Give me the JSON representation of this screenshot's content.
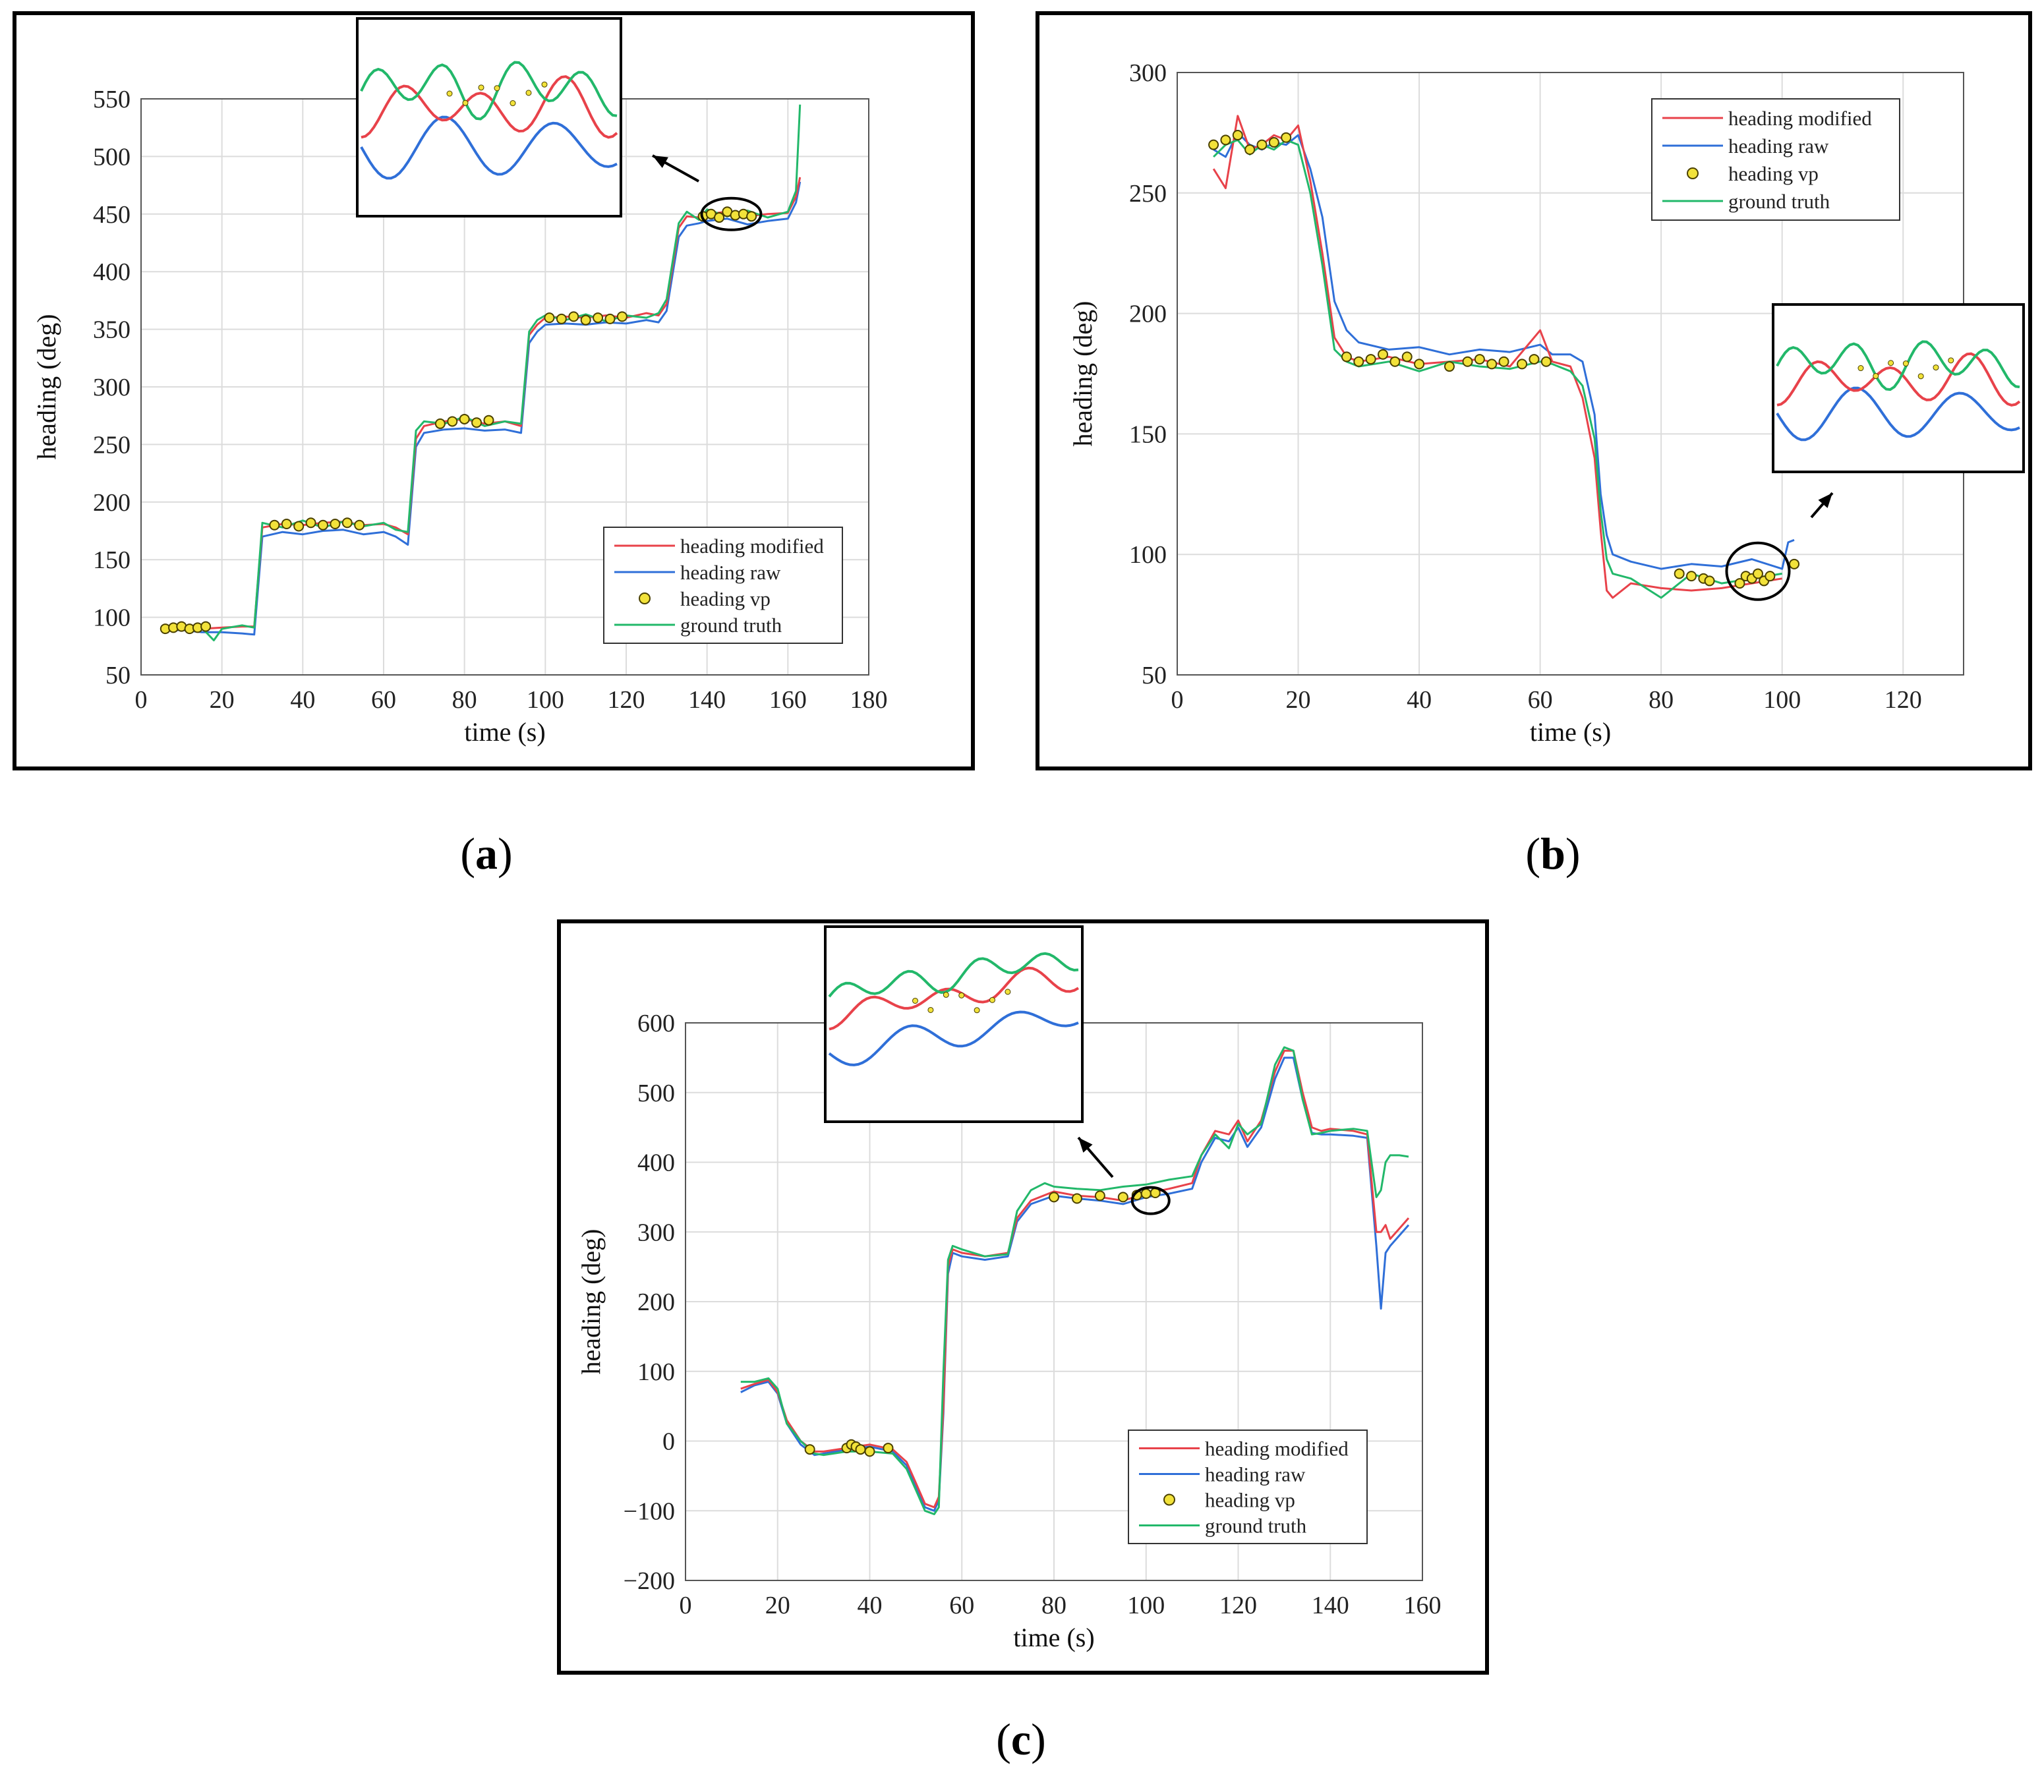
{
  "figure": {
    "panel_labels": {
      "a": "a",
      "b": "b",
      "c": "c"
    }
  },
  "colors": {
    "modified": "#e8424a",
    "raw": "#2f6fd8",
    "vp_fill": "#f2e23a",
    "vp_edge": "#4a4000",
    "truth": "#22b86a",
    "grid": "#dcdcdc",
    "axis": "#555555"
  },
  "legend_labels": [
    "heading modified",
    "heading raw",
    "heading vp",
    "ground truth"
  ],
  "chart_data": [
    {
      "id": "a",
      "type": "line",
      "xlabel": "time (s)",
      "ylabel": "heading (deg)",
      "xlim": [
        0,
        180
      ],
      "ylim": [
        50,
        550
      ],
      "xticks": [
        0,
        20,
        40,
        60,
        80,
        100,
        120,
        140,
        160,
        180
      ],
      "yticks": [
        50,
        100,
        150,
        200,
        250,
        300,
        350,
        400,
        450,
        500,
        550
      ],
      "grid": true,
      "legend": "bottom-right",
      "series": [
        {
          "name": "heading modified",
          "key": "modified",
          "x": [
            5,
            10,
            15,
            20,
            25,
            28,
            30,
            35,
            40,
            45,
            50,
            55,
            60,
            63,
            66,
            68,
            70,
            75,
            80,
            85,
            90,
            94,
            96,
            98,
            100,
            105,
            110,
            115,
            120,
            125,
            128,
            130,
            133,
            135,
            138,
            140,
            145,
            150,
            155,
            160,
            162,
            163
          ],
          "y": [
            91,
            92,
            90,
            91,
            92,
            92,
            178,
            181,
            180,
            182,
            183,
            180,
            181,
            178,
            172,
            255,
            266,
            270,
            272,
            268,
            270,
            266,
            345,
            354,
            360,
            361,
            360,
            362,
            360,
            364,
            362,
            372,
            438,
            448,
            447,
            450,
            452,
            448,
            450,
            451,
            465,
            482
          ]
        },
        {
          "name": "heading raw",
          "key": "raw",
          "x": [
            5,
            10,
            15,
            20,
            25,
            28,
            30,
            35,
            40,
            45,
            50,
            55,
            60,
            63,
            66,
            68,
            70,
            75,
            80,
            85,
            90,
            94,
            96,
            98,
            100,
            105,
            110,
            115,
            120,
            125,
            128,
            130,
            133,
            135,
            138,
            140,
            145,
            150,
            155,
            160,
            162,
            163
          ],
          "y": [
            88,
            89,
            87,
            87,
            86,
            85,
            170,
            174,
            172,
            175,
            176,
            172,
            174,
            170,
            163,
            248,
            260,
            263,
            264,
            262,
            263,
            260,
            338,
            348,
            354,
            355,
            354,
            356,
            355,
            358,
            356,
            366,
            430,
            440,
            442,
            444,
            446,
            441,
            444,
            446,
            460,
            478
          ]
        },
        {
          "name": "heading vp",
          "key": "vp",
          "marker": "o",
          "x": [
            6,
            8,
            10,
            12,
            14,
            16,
            33,
            36,
            39,
            42,
            45,
            48,
            51,
            54,
            74,
            77,
            80,
            83,
            86,
            101,
            104,
            107,
            110,
            113,
            116,
            119,
            139,
            141,
            143,
            145,
            147,
            149,
            151
          ],
          "y": [
            90,
            91,
            92,
            90,
            91,
            92,
            180,
            181,
            179,
            182,
            180,
            181,
            182,
            180,
            268,
            270,
            272,
            269,
            271,
            360,
            359,
            361,
            358,
            360,
            359,
            361,
            448,
            450,
            447,
            452,
            449,
            450,
            448
          ]
        },
        {
          "name": "ground truth",
          "key": "truth",
          "x": [
            5,
            10,
            15,
            18,
            20,
            25,
            28,
            30,
            35,
            40,
            45,
            50,
            55,
            60,
            63,
            66,
            68,
            70,
            75,
            80,
            85,
            90,
            94,
            96,
            98,
            100,
            105,
            110,
            115,
            120,
            125,
            128,
            130,
            133,
            135,
            138,
            140,
            145,
            150,
            155,
            160,
            162,
            163
          ],
          "y": [
            92,
            93,
            91,
            80,
            90,
            93,
            91,
            182,
            178,
            184,
            178,
            183,
            179,
            182,
            176,
            174,
            262,
            270,
            268,
            274,
            266,
            270,
            268,
            348,
            358,
            362,
            358,
            363,
            357,
            362,
            360,
            364,
            376,
            442,
            452,
            445,
            454,
            448,
            453,
            447,
            452,
            470,
            545
          ]
        }
      ],
      "inset": {
        "center": [
          146,
          450
        ]
      }
    },
    {
      "id": "b",
      "type": "line",
      "xlabel": "time (s)",
      "ylabel": "heading (deg)",
      "xlim": [
        0,
        130
      ],
      "ylim": [
        50,
        300
      ],
      "xticks": [
        0,
        20,
        40,
        60,
        80,
        100,
        120
      ],
      "yticks": [
        50,
        100,
        150,
        200,
        250,
        300
      ],
      "grid": true,
      "legend": "top-right",
      "series": [
        {
          "name": "heading modified",
          "key": "modified",
          "x": [
            6,
            8,
            10,
            12,
            14,
            16,
            18,
            20,
            22,
            24,
            26,
            28,
            30,
            35,
            40,
            45,
            50,
            55,
            60,
            62,
            65,
            67,
            69,
            70,
            71,
            72,
            75,
            80,
            85,
            90,
            95,
            100
          ],
          "y": [
            260,
            252,
            282,
            268,
            270,
            274,
            272,
            278,
            255,
            225,
            190,
            182,
            180,
            182,
            179,
            180,
            181,
            178,
            193,
            180,
            178,
            165,
            140,
            110,
            85,
            82,
            88,
            86,
            85,
            86,
            88,
            90
          ]
        },
        {
          "name": "heading raw",
          "key": "raw",
          "x": [
            6,
            8,
            10,
            12,
            14,
            16,
            18,
            20,
            22,
            24,
            26,
            28,
            30,
            35,
            40,
            45,
            50,
            55,
            60,
            62,
            65,
            67,
            69,
            70,
            71,
            72,
            75,
            80,
            85,
            90,
            95,
            100,
            101,
            102
          ],
          "y": [
            268,
            265,
            275,
            270,
            268,
            271,
            270,
            274,
            260,
            240,
            205,
            193,
            188,
            185,
            186,
            183,
            185,
            184,
            187,
            183,
            183,
            180,
            158,
            125,
            108,
            100,
            97,
            94,
            96,
            95,
            98,
            94,
            105,
            106
          ]
        },
        {
          "name": "heading vp",
          "key": "vp",
          "marker": "o",
          "x": [
            6,
            8,
            10,
            12,
            14,
            16,
            18,
            28,
            30,
            32,
            34,
            36,
            38,
            40,
            45,
            48,
            50,
            52,
            54,
            57,
            59,
            61,
            83,
            85,
            87,
            88,
            93,
            94,
            95,
            96,
            97,
            98,
            102
          ],
          "y": [
            270,
            272,
            274,
            268,
            270,
            271,
            273,
            182,
            180,
            181,
            183,
            180,
            182,
            179,
            178,
            180,
            181,
            179,
            180,
            179,
            181,
            180,
            92,
            91,
            90,
            89,
            88,
            91,
            90,
            92,
            89,
            91,
            96
          ]
        },
        {
          "name": "ground truth",
          "key": "truth",
          "x": [
            6,
            8,
            10,
            12,
            14,
            16,
            18,
            20,
            22,
            24,
            26,
            28,
            30,
            35,
            40,
            45,
            50,
            55,
            60,
            62,
            65,
            67,
            69,
            70,
            71,
            72,
            75,
            80,
            85,
            90,
            95,
            100
          ],
          "y": [
            265,
            270,
            272,
            266,
            270,
            268,
            272,
            270,
            250,
            220,
            185,
            180,
            178,
            180,
            176,
            180,
            178,
            177,
            180,
            179,
            176,
            170,
            148,
            118,
            98,
            92,
            90,
            82,
            92,
            88,
            90,
            92
          ]
        }
      ],
      "inset": {
        "center": [
          96,
          93
        ]
      }
    },
    {
      "id": "c",
      "type": "line",
      "xlabel": "time (s)",
      "ylabel": "heading (deg)",
      "xlim": [
        0,
        160
      ],
      "ylim": [
        -200,
        600
      ],
      "xticks": [
        0,
        20,
        40,
        60,
        80,
        100,
        120,
        140,
        160
      ],
      "yticks": [
        -200,
        -100,
        0,
        100,
        200,
        300,
        400,
        500,
        600
      ],
      "grid": true,
      "legend": "bottom-right",
      "series": [
        {
          "name": "heading modified",
          "key": "modified",
          "x": [
            12,
            15,
            18,
            20,
            22,
            25,
            28,
            30,
            35,
            40,
            45,
            48,
            50,
            52,
            54,
            55,
            56,
            57,
            58,
            60,
            65,
            70,
            72,
            75,
            80,
            85,
            90,
            95,
            100,
            105,
            110,
            112,
            115,
            118,
            120,
            122,
            125,
            128,
            130,
            132,
            134,
            136,
            138,
            140,
            145,
            148,
            150,
            151,
            152,
            153,
            155,
            157
          ],
          "y": [
            75,
            82,
            88,
            70,
            30,
            0,
            -15,
            -15,
            -10,
            -5,
            -12,
            -30,
            -60,
            -90,
            -95,
            -80,
            50,
            250,
            275,
            270,
            265,
            270,
            320,
            345,
            358,
            352,
            350,
            345,
            355,
            362,
            370,
            410,
            445,
            440,
            460,
            430,
            460,
            530,
            560,
            560,
            500,
            450,
            445,
            448,
            445,
            440,
            300,
            300,
            310,
            290,
            305,
            320
          ]
        },
        {
          "name": "heading raw",
          "key": "raw",
          "x": [
            12,
            15,
            18,
            20,
            22,
            25,
            28,
            30,
            35,
            40,
            45,
            48,
            50,
            52,
            54,
            55,
            56,
            57,
            58,
            60,
            65,
            70,
            72,
            75,
            80,
            85,
            90,
            95,
            100,
            105,
            110,
            112,
            115,
            118,
            120,
            122,
            125,
            128,
            130,
            132,
            134,
            136,
            138,
            140,
            145,
            148,
            150,
            151,
            152,
            153,
            155,
            157
          ],
          "y": [
            70,
            80,
            85,
            68,
            25,
            -5,
            -20,
            -18,
            -12,
            -8,
            -15,
            -35,
            -65,
            -95,
            -100,
            -85,
            40,
            240,
            270,
            265,
            260,
            265,
            315,
            340,
            352,
            348,
            345,
            340,
            350,
            355,
            362,
            400,
            435,
            430,
            450,
            422,
            450,
            520,
            550,
            550,
            490,
            442,
            440,
            440,
            438,
            435,
            280,
            190,
            270,
            280,
            295,
            310
          ]
        },
        {
          "name": "heading vp",
          "key": "vp",
          "marker": "o",
          "x": [
            27,
            35,
            36,
            37,
            38,
            40,
            44,
            80,
            85,
            90,
            95,
            98,
            100,
            102
          ],
          "y": [
            -12,
            -10,
            -5,
            -8,
            -12,
            -15,
            -10,
            350,
            348,
            352,
            350,
            353,
            355,
            356
          ]
        },
        {
          "name": "ground truth",
          "key": "truth",
          "x": [
            12,
            15,
            18,
            20,
            22,
            25,
            28,
            30,
            35,
            40,
            45,
            48,
            50,
            52,
            54,
            55,
            56,
            57,
            58,
            60,
            65,
            70,
            72,
            75,
            78,
            80,
            85,
            90,
            95,
            100,
            105,
            110,
            112,
            115,
            118,
            120,
            122,
            125,
            128,
            130,
            132,
            134,
            136,
            138,
            140,
            145,
            148,
            150,
            151,
            152,
            153,
            155,
            157
          ],
          "y": [
            85,
            85,
            90,
            75,
            25,
            0,
            -18,
            -20,
            -15,
            -15,
            -18,
            -40,
            -70,
            -100,
            -105,
            -95,
            100,
            260,
            280,
            275,
            265,
            268,
            330,
            360,
            370,
            365,
            362,
            360,
            365,
            368,
            375,
            380,
            410,
            440,
            420,
            455,
            440,
            455,
            540,
            565,
            560,
            490,
            440,
            442,
            445,
            448,
            445,
            350,
            360,
            400,
            410,
            410,
            408
          ]
        }
      ],
      "inset": {
        "center": [
          101,
          345
        ]
      }
    }
  ]
}
